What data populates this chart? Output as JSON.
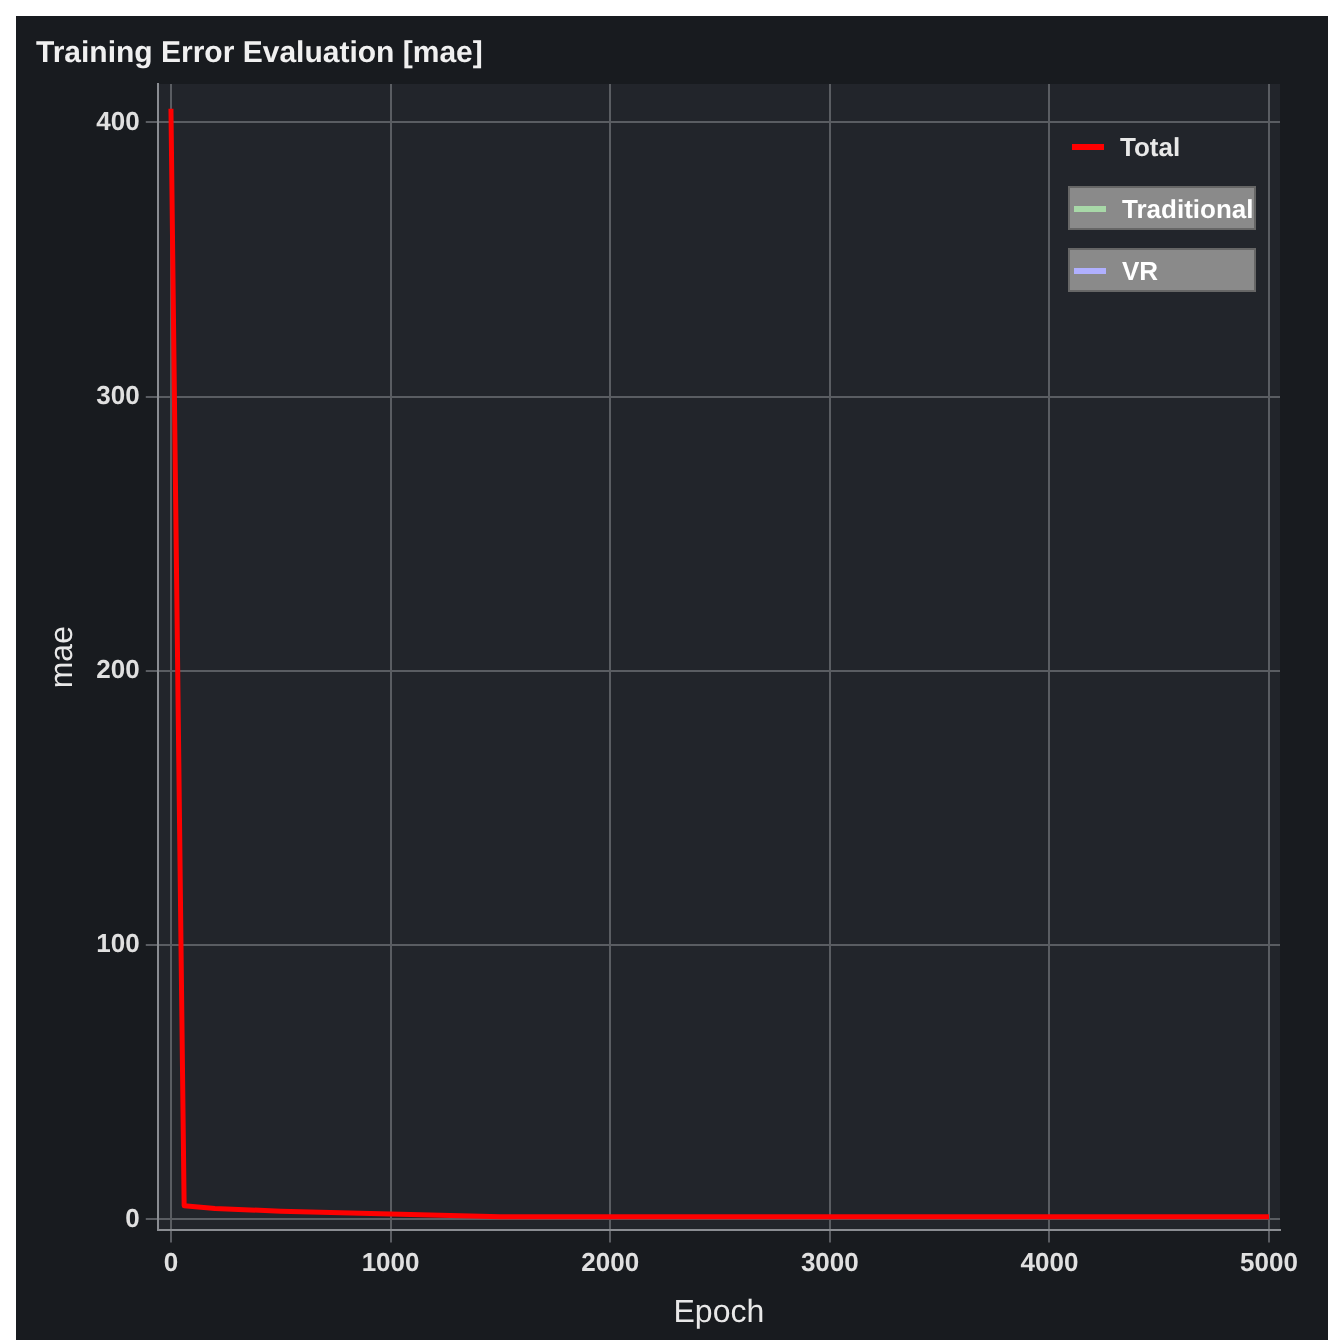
{
  "chart_data": {
    "type": "line",
    "title": "Training Error Evaluation [mae]",
    "xlabel": "Epoch",
    "ylabel": "mae",
    "x": [
      0,
      60,
      200,
      500,
      1000,
      1500,
      2000,
      3000,
      4000,
      5000
    ],
    "series": [
      {
        "name": "Total",
        "color": "#ff0000",
        "values": [
          405,
          5,
          4,
          3,
          2,
          1,
          1,
          1,
          1,
          1
        ]
      },
      {
        "name": "Traditional",
        "color": "#a8d8a8",
        "values": [
          null,
          null,
          null,
          null,
          null,
          null,
          null,
          null,
          null,
          null
        ]
      },
      {
        "name": "VR",
        "color": "#b0b0ff",
        "values": [
          null,
          null,
          null,
          null,
          null,
          null,
          null,
          null,
          null,
          null
        ]
      }
    ],
    "xlim": [
      -60,
      5050
    ],
    "xticks": [
      0,
      1000,
      2000,
      3000,
      4000,
      5000
    ],
    "ylim": [
      -4,
      414
    ],
    "yticks": [
      0,
      100,
      200,
      300,
      400
    ],
    "grid": true,
    "legend": "top right",
    "marker": "none",
    "line_style": "solid"
  }
}
